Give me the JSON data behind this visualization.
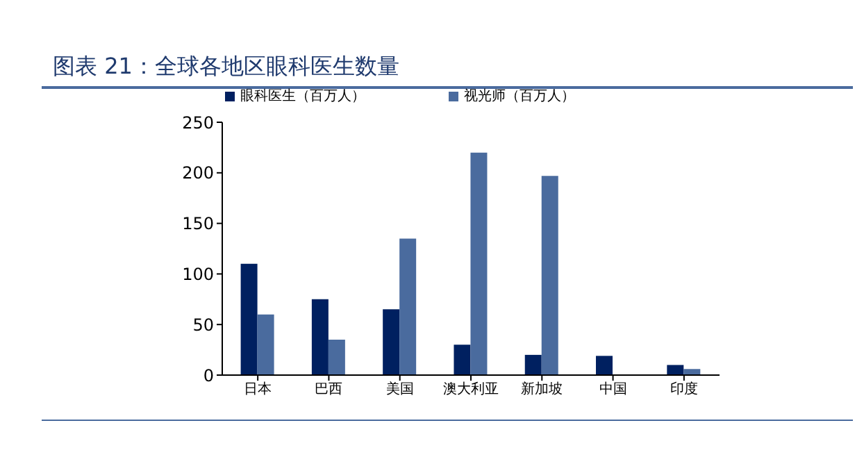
{
  "chart_data": {
    "type": "bar",
    "title": "图表 21：全球各地区眼科医生数量",
    "categories": [
      "日本",
      "巴西",
      "美国",
      "澳大利亚",
      "新加坡",
      "中国",
      "印度"
    ],
    "series": [
      {
        "name": "眼科医生（百万人）",
        "color": "#002060",
        "values": [
          110,
          75,
          65,
          30,
          20,
          19,
          10
        ]
      },
      {
        "name": "视光师（百万人）",
        "color": "#4a6b9e",
        "values": [
          60,
          35,
          135,
          220,
          197,
          null,
          6
        ]
      }
    ],
    "ylim": [
      0,
      250
    ],
    "yticks": [
      0,
      50,
      100,
      150,
      200,
      250
    ],
    "grid": false,
    "legend": "top"
  }
}
